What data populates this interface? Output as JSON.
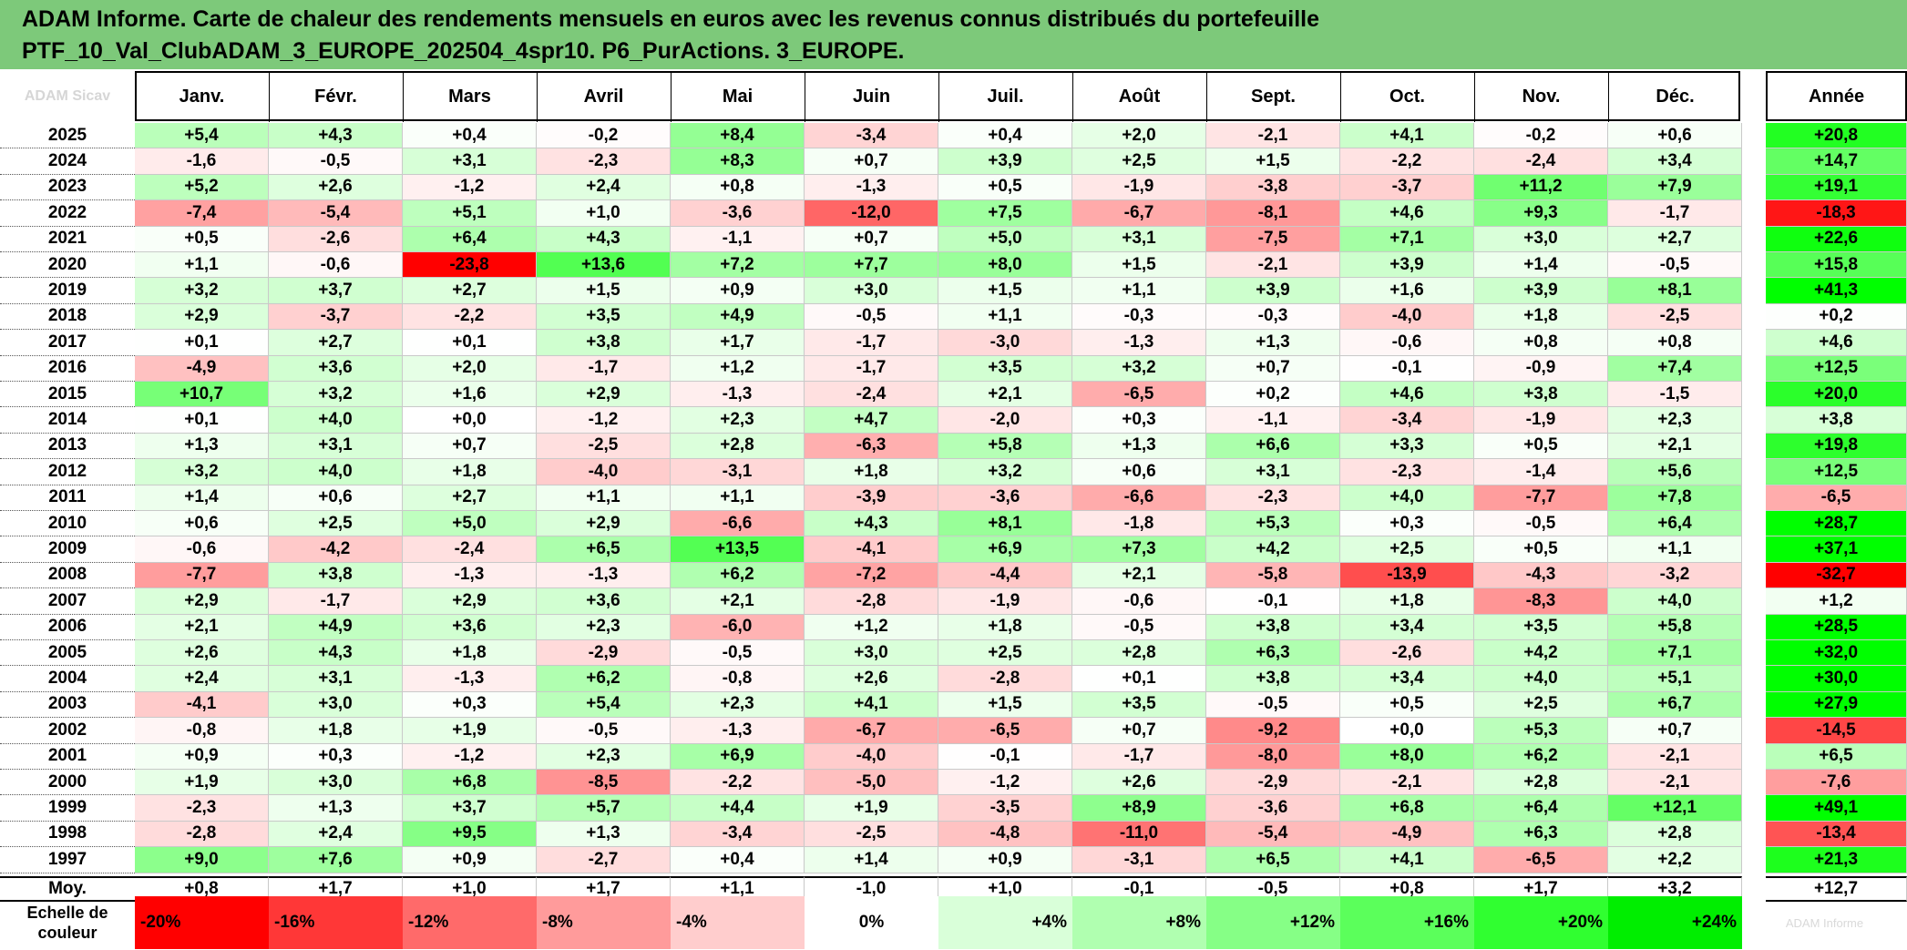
{
  "title_lines": [
    "ADAM Informe. Carte de chaleur des rendements mensuels en euros avec les revenus connus distribués du portefeuille",
    "PTF_10_Val_ClubADAM_3_EUROPE_202504_4spr10. P6_PurActions. 3_EUROPE."
  ],
  "watermark": "ADAM Sicav",
  "scale_watermark": "ADAM Informe",
  "chart_data": {
    "type": "heatmap",
    "columns": [
      "Janv.",
      "Févr.",
      "Mars",
      "Avril",
      "Mai",
      "Juin",
      "Juil.",
      "Août",
      "Sept.",
      "Oct.",
      "Nov.",
      "Déc."
    ],
    "year_column": "Année",
    "rows": [
      {
        "year": "2025",
        "values": [
          "+5,4",
          "+4,3",
          "+0,4",
          "-0,2",
          "+8,4",
          "-3,4",
          "+0,4",
          "+2,0",
          "-2,1",
          "+4,1",
          "-0,2",
          "+0,6"
        ],
        "annual": "+20,8"
      },
      {
        "year": "2024",
        "values": [
          "-1,6",
          "-0,5",
          "+3,1",
          "-2,3",
          "+8,3",
          "+0,7",
          "+3,9",
          "+2,5",
          "+1,5",
          "-2,2",
          "-2,4",
          "+3,4"
        ],
        "annual": "+14,7"
      },
      {
        "year": "2023",
        "values": [
          "+5,2",
          "+2,6",
          "-1,2",
          "+2,4",
          "+0,8",
          "-1,3",
          "+0,5",
          "-1,9",
          "-3,8",
          "-3,7",
          "+11,2",
          "+7,9"
        ],
        "annual": "+19,1"
      },
      {
        "year": "2022",
        "values": [
          "-7,4",
          "-5,4",
          "+5,1",
          "+1,0",
          "-3,6",
          "-12,0",
          "+7,5",
          "-6,7",
          "-8,1",
          "+4,6",
          "+9,3",
          "-1,7"
        ],
        "annual": "-18,3"
      },
      {
        "year": "2021",
        "values": [
          "+0,5",
          "-2,6",
          "+6,4",
          "+4,3",
          "-1,1",
          "+0,7",
          "+5,0",
          "+3,1",
          "-7,5",
          "+7,1",
          "+3,0",
          "+2,7"
        ],
        "annual": "+22,6"
      },
      {
        "year": "2020",
        "values": [
          "+1,1",
          "-0,6",
          "-23,8",
          "+13,6",
          "+7,2",
          "+7,7",
          "+8,0",
          "+1,5",
          "-2,1",
          "+3,9",
          "+1,4",
          "-0,5"
        ],
        "annual": "+15,8"
      },
      {
        "year": "2019",
        "values": [
          "+3,2",
          "+3,7",
          "+2,7",
          "+1,5",
          "+0,9",
          "+3,0",
          "+1,5",
          "+1,1",
          "+3,9",
          "+1,6",
          "+3,9",
          "+8,1"
        ],
        "annual": "+41,3"
      },
      {
        "year": "2018",
        "values": [
          "+2,9",
          "-3,7",
          "-2,2",
          "+3,5",
          "+4,9",
          "-0,5",
          "+1,1",
          "-0,3",
          "-0,3",
          "-4,0",
          "+1,8",
          "-2,5"
        ],
        "annual": "+0,2"
      },
      {
        "year": "2017",
        "values": [
          "+0,1",
          "+2,7",
          "+0,1",
          "+3,8",
          "+1,7",
          "-1,7",
          "-3,0",
          "-1,3",
          "+1,3",
          "-0,6",
          "+0,8",
          "+0,8"
        ],
        "annual": "+4,6"
      },
      {
        "year": "2016",
        "values": [
          "-4,9",
          "+3,6",
          "+2,0",
          "-1,7",
          "+1,2",
          "-1,7",
          "+3,5",
          "+3,2",
          "+0,7",
          "-0,1",
          "-0,9",
          "+7,4"
        ],
        "annual": "+12,5"
      },
      {
        "year": "2015",
        "values": [
          "+10,7",
          "+3,2",
          "+1,6",
          "+2,9",
          "-1,3",
          "-2,4",
          "+2,1",
          "-6,5",
          "+0,2",
          "+4,6",
          "+3,8",
          "-1,5"
        ],
        "annual": "+20,0"
      },
      {
        "year": "2014",
        "values": [
          "+0,1",
          "+4,0",
          "+0,0",
          "-1,2",
          "+2,3",
          "+4,7",
          "-2,0",
          "+0,3",
          "-1,1",
          "-3,4",
          "-1,9",
          "+2,3"
        ],
        "annual": "+3,8"
      },
      {
        "year": "2013",
        "values": [
          "+1,3",
          "+3,1",
          "+0,7",
          "-2,5",
          "+2,8",
          "-6,3",
          "+5,8",
          "+1,3",
          "+6,6",
          "+3,3",
          "+0,5",
          "+2,1"
        ],
        "annual": "+19,8"
      },
      {
        "year": "2012",
        "values": [
          "+3,2",
          "+4,0",
          "+1,8",
          "-4,0",
          "-3,1",
          "+1,8",
          "+3,2",
          "+0,6",
          "+3,1",
          "-2,3",
          "-1,4",
          "+5,6"
        ],
        "annual": "+12,5"
      },
      {
        "year": "2011",
        "values": [
          "+1,4",
          "+0,6",
          "+2,7",
          "+1,1",
          "+1,1",
          "-3,9",
          "-3,6",
          "-6,6",
          "-2,3",
          "+4,0",
          "-7,7",
          "+7,8"
        ],
        "annual": "-6,5"
      },
      {
        "year": "2010",
        "values": [
          "+0,6",
          "+2,5",
          "+5,0",
          "+2,9",
          "-6,6",
          "+4,3",
          "+8,1",
          "-1,8",
          "+5,3",
          "+0,3",
          "-0,5",
          "+6,4"
        ],
        "annual": "+28,7"
      },
      {
        "year": "2009",
        "values": [
          "-0,6",
          "-4,2",
          "-2,4",
          "+6,5",
          "+13,5",
          "-4,1",
          "+6,9",
          "+7,3",
          "+4,2",
          "+2,5",
          "+0,5",
          "+1,1"
        ],
        "annual": "+37,1"
      },
      {
        "year": "2008",
        "values": [
          "-7,7",
          "+3,8",
          "-1,3",
          "-1,3",
          "+6,2",
          "-7,2",
          "-4,4",
          "+2,1",
          "-5,8",
          "-13,9",
          "-4,3",
          "-3,2"
        ],
        "annual": "-32,7"
      },
      {
        "year": "2007",
        "values": [
          "+2,9",
          "-1,7",
          "+2,9",
          "+3,6",
          "+2,1",
          "-2,8",
          "-1,9",
          "-0,6",
          "-0,1",
          "+1,8",
          "-8,3",
          "+4,0"
        ],
        "annual": "+1,2"
      },
      {
        "year": "2006",
        "values": [
          "+2,1",
          "+4,9",
          "+3,6",
          "+2,3",
          "-6,0",
          "+1,2",
          "+1,8",
          "-0,5",
          "+3,8",
          "+3,4",
          "+3,5",
          "+5,8"
        ],
        "annual": "+28,5"
      },
      {
        "year": "2005",
        "values": [
          "+2,6",
          "+4,3",
          "+1,8",
          "-2,9",
          "-0,5",
          "+3,0",
          "+2,5",
          "+2,8",
          "+6,3",
          "-2,6",
          "+4,2",
          "+7,1"
        ],
        "annual": "+32,0"
      },
      {
        "year": "2004",
        "values": [
          "+2,4",
          "+3,1",
          "-1,3",
          "+6,2",
          "-0,8",
          "+2,6",
          "-2,8",
          "+0,1",
          "+3,8",
          "+3,4",
          "+4,0",
          "+5,1"
        ],
        "annual": "+30,0"
      },
      {
        "year": "2003",
        "values": [
          "-4,1",
          "+3,0",
          "+0,3",
          "+5,4",
          "+2,3",
          "+4,1",
          "+1,5",
          "+3,5",
          "-0,5",
          "+0,5",
          "+2,5",
          "+6,7"
        ],
        "annual": "+27,9"
      },
      {
        "year": "2002",
        "values": [
          "-0,8",
          "+1,8",
          "+1,9",
          "-0,5",
          "-1,3",
          "-6,7",
          "-6,5",
          "+0,7",
          "-9,2",
          "+0,0",
          "+5,3",
          "+0,7"
        ],
        "annual": "-14,5"
      },
      {
        "year": "2001",
        "values": [
          "+0,9",
          "+0,3",
          "-1,2",
          "+2,3",
          "+6,9",
          "-4,0",
          "-0,1",
          "-1,7",
          "-8,0",
          "+8,0",
          "+6,2",
          "-2,1"
        ],
        "annual": "+6,5"
      },
      {
        "year": "2000",
        "values": [
          "+1,9",
          "+3,0",
          "+6,8",
          "-8,5",
          "-2,2",
          "-5,0",
          "-1,2",
          "+2,6",
          "-2,9",
          "-2,1",
          "+2,8",
          "-2,1"
        ],
        "annual": "-7,6"
      },
      {
        "year": "1999",
        "values": [
          "-2,3",
          "+1,3",
          "+3,7",
          "+5,7",
          "+4,4",
          "+1,9",
          "-3,5",
          "+8,9",
          "-3,6",
          "+6,8",
          "+6,4",
          "+12,1"
        ],
        "annual": "+49,1"
      },
      {
        "year": "1998",
        "values": [
          "-2,8",
          "+2,4",
          "+9,5",
          "+1,3",
          "-3,4",
          "-2,5",
          "-4,8",
          "-11,0",
          "-5,4",
          "-4,9",
          "+6,3",
          "+2,8"
        ],
        "annual": "-13,4"
      },
      {
        "year": "1997",
        "values": [
          "+9,0",
          "+7,6",
          "+0,9",
          "-2,7",
          "+0,4",
          "+1,4",
          "+0,9",
          "-3,1",
          "+6,5",
          "+4,1",
          "-6,5",
          "+2,2"
        ],
        "annual": "+21,3"
      }
    ],
    "average_row": {
      "label": "Moy.",
      "values": [
        "+0,8",
        "+1,7",
        "+1,0",
        "+1,7",
        "+1,1",
        "-1,0",
        "+1,0",
        "-0,1",
        "-0,5",
        "+0,8",
        "+1,7",
        "+3,2"
      ],
      "annual": "+12,7"
    },
    "scale": {
      "label_lines": [
        "Echelle de",
        "couleur"
      ],
      "items": [
        {
          "label": "-20%",
          "color": "#ff0000",
          "align": "left"
        },
        {
          "label": "-16%",
          "color": "#ff3737",
          "align": "left"
        },
        {
          "label": "-12%",
          "color": "#ff6a6a",
          "align": "left"
        },
        {
          "label": "-8%",
          "color": "#ff9b9b",
          "align": "left"
        },
        {
          "label": "-4%",
          "color": "#ffcdcd",
          "align": "left"
        },
        {
          "label": "0%",
          "color": "#ffffff",
          "align": "center"
        },
        {
          "label": "+4%",
          "color": "#d9ffd9",
          "align": "right"
        },
        {
          "label": "+8%",
          "color": "#b0ffb0",
          "align": "right"
        },
        {
          "label": "+12%",
          "color": "#86ff86",
          "align": "right"
        },
        {
          "label": "+16%",
          "color": "#5bff5b",
          "align": "right"
        },
        {
          "label": "+20%",
          "color": "#30ff30",
          "align": "right"
        },
        {
          "label": "+24%",
          "color": "#00ee00",
          "align": "right"
        }
      ]
    },
    "colors": {
      "negative": "#ff0000",
      "neutral": "#ffffff",
      "positive": "#00ff00"
    },
    "monthly_color_range": [
      -20,
      20
    ],
    "annual_color_range": [
      -20,
      24
    ]
  }
}
